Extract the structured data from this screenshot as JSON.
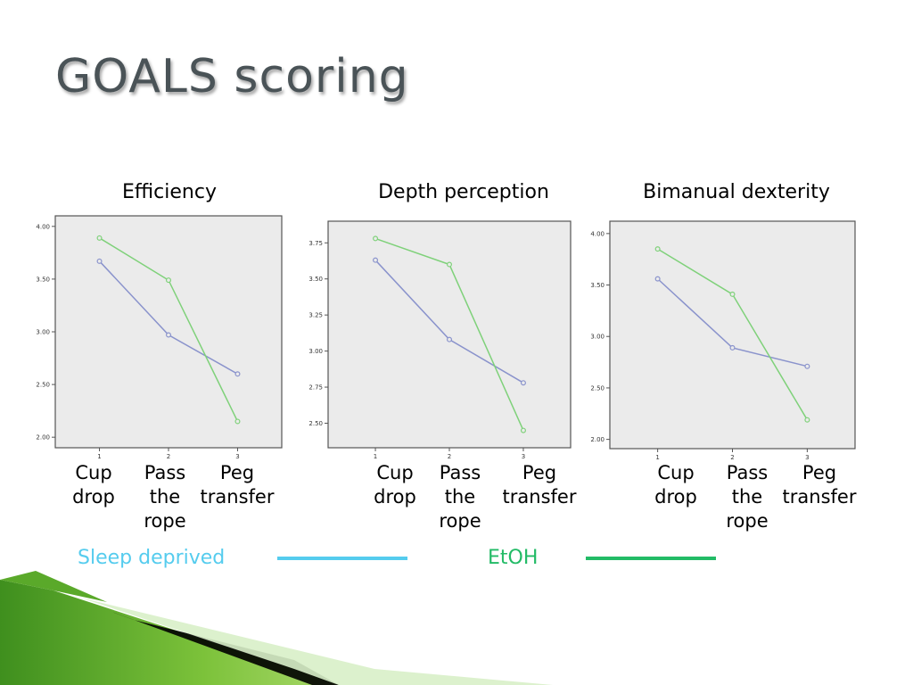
{
  "slide": {
    "title": "GOALS scoring"
  },
  "legend": [
    {
      "label": "Sleep deprived",
      "color": "#55ccee"
    },
    {
      "label": "EtOH",
      "color": "#22bb66"
    }
  ],
  "categories": [
    "Cup\ndrop",
    "Pass\nthe\nrope",
    "Peg\ntransfer"
  ],
  "chart_data": [
    {
      "type": "line",
      "title": "Efficiency",
      "x": [
        "1",
        "2",
        "3"
      ],
      "y_ticks": [
        "2.00",
        "2.50",
        "3.00",
        "3.50",
        "4.00"
      ],
      "y_tick_values": [
        2.0,
        2.5,
        3.0,
        3.5,
        4.0
      ],
      "ylim": [
        1.9,
        4.1
      ],
      "series": [
        {
          "color": "#8a93cc",
          "values": [
            3.67,
            2.97,
            2.6
          ]
        },
        {
          "color": "#7fd17a",
          "values": [
            3.89,
            3.49,
            2.15
          ]
        }
      ]
    },
    {
      "type": "line",
      "title": "Depth perception",
      "x": [
        "1",
        "2",
        "3"
      ],
      "y_ticks": [
        "2.50",
        "2.75",
        "3.00",
        "3.25",
        "3.50",
        "3.75"
      ],
      "y_tick_values": [
        2.5,
        2.75,
        3.0,
        3.25,
        3.5,
        3.75
      ],
      "ylim": [
        2.33,
        3.9
      ],
      "series": [
        {
          "color": "#8a93cc",
          "values": [
            3.63,
            3.08,
            2.78
          ]
        },
        {
          "color": "#7fd17a",
          "values": [
            3.78,
            3.6,
            2.45
          ]
        }
      ]
    },
    {
      "type": "line",
      "title": "Bimanual dexterity",
      "x": [
        "1",
        "2",
        "3"
      ],
      "y_ticks": [
        "2.00",
        "2.50",
        "3.00",
        "3.50",
        "4.00"
      ],
      "y_tick_values": [
        2.0,
        2.5,
        3.0,
        3.5,
        4.0
      ],
      "ylim": [
        1.91,
        4.12
      ],
      "series": [
        {
          "color": "#8a93cc",
          "values": [
            3.56,
            2.89,
            2.71
          ]
        },
        {
          "color": "#7fd17a",
          "values": [
            3.85,
            3.41,
            2.19
          ]
        }
      ]
    }
  ]
}
